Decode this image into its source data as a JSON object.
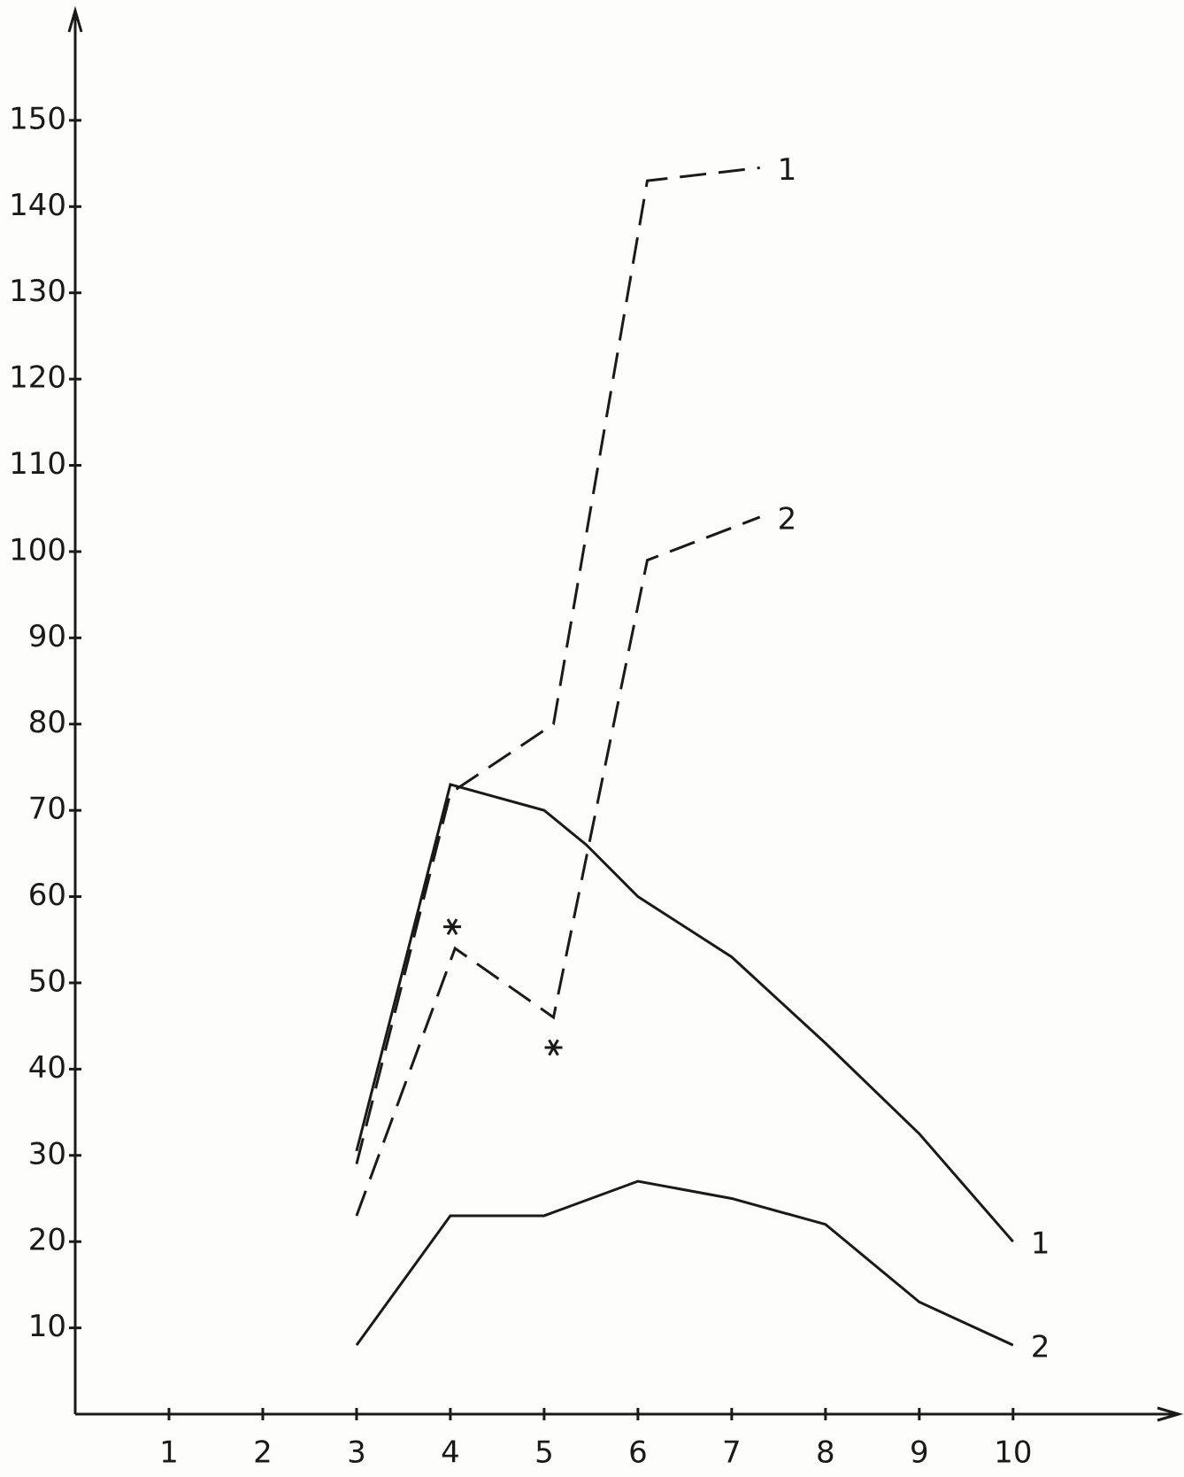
{
  "chart_data": {
    "type": "line",
    "xlim": [
      0,
      11.7
    ],
    "ylim": [
      0,
      162
    ],
    "xticks": [
      1,
      2,
      3,
      4,
      5,
      6,
      7,
      8,
      9,
      10
    ],
    "yticks": [
      10,
      20,
      30,
      40,
      50,
      60,
      70,
      80,
      90,
      100,
      110,
      120,
      130,
      140,
      150
    ],
    "series": [
      {
        "name": "1",
        "color": "#1a1a1a",
        "dashed": false,
        "x": [
          3,
          4,
          5,
          5.45,
          6,
          7,
          8,
          9,
          10
        ],
        "values": [
          30.5,
          73,
          70,
          66,
          60,
          53,
          43,
          32.5,
          20
        ]
      },
      {
        "name": "2",
        "color": "#1a1a1a",
        "dashed": false,
        "x": [
          3,
          4,
          5,
          6,
          7,
          8,
          9,
          10
        ],
        "values": [
          8,
          23,
          23,
          27,
          25,
          22,
          13,
          8
        ]
      },
      {
        "name": "1",
        "color": "#1a1a1a",
        "dashed": true,
        "x": [
          3,
          4,
          5.1,
          6.1,
          7.3
        ],
        "values": [
          29,
          72,
          80,
          143,
          144.5
        ]
      },
      {
        "name": "2",
        "color": "#1a1a1a",
        "dashed": true,
        "x": [
          3,
          4.05,
          5.1,
          6.1,
          7.3
        ],
        "values": [
          23,
          54,
          46,
          99,
          104
        ]
      }
    ],
    "points": {
      "x": [
        4.02,
        5.1
      ],
      "values": [
        56.5,
        42.5
      ]
    }
  }
}
